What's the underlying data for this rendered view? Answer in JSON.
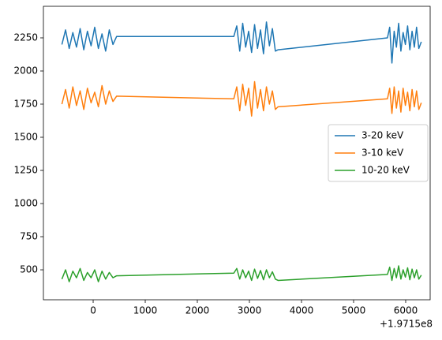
{
  "chart_data": {
    "type": "line",
    "x": [
      -600,
      -530,
      -460,
      -390,
      -320,
      -250,
      -180,
      -110,
      -40,
      30,
      100,
      170,
      240,
      310,
      380,
      450,
      2700,
      2757,
      2814,
      2871,
      2928,
      2985,
      3042,
      3099,
      3156,
      3213,
      3270,
      3327,
      3384,
      3441,
      3498,
      3550,
      5650,
      5693,
      5736,
      5779,
      5822,
      5865,
      5908,
      5951,
      5994,
      6037,
      6080,
      6123,
      6166,
      6209,
      6252,
      6300
    ],
    "x_offset_label": "+1.9715e8",
    "series": [
      {
        "name": "3-20 keV",
        "color": "#1f77b4",
        "values": [
          2200,
          2310,
          2170,
          2290,
          2180,
          2320,
          2160,
          2300,
          2190,
          2330,
          2170,
          2280,
          2150,
          2310,
          2200,
          2260,
          2260,
          2340,
          2150,
          2360,
          2180,
          2300,
          2140,
          2350,
          2170,
          2310,
          2130,
          2370,
          2190,
          2320,
          2150,
          2160,
          2250,
          2330,
          2060,
          2300,
          2180,
          2360,
          2150,
          2290,
          2200,
          2340,
          2160,
          2300,
          2180,
          2330,
          2170,
          2220
        ]
      },
      {
        "name": "3-10 keV",
        "color": "#ff7f0e",
        "values": [
          1750,
          1860,
          1720,
          1880,
          1740,
          1850,
          1710,
          1870,
          1760,
          1840,
          1730,
          1890,
          1750,
          1850,
          1770,
          1810,
          1790,
          1880,
          1700,
          1900,
          1740,
          1870,
          1660,
          1920,
          1720,
          1860,
          1700,
          1880,
          1750,
          1850,
          1710,
          1730,
          1790,
          1870,
          1680,
          1880,
          1720,
          1850,
          1690,
          1870,
          1740,
          1840,
          1700,
          1860,
          1730,
          1850,
          1710,
          1760
        ]
      },
      {
        "name": "10-20 keV",
        "color": "#2ca02c",
        "values": [
          430,
          500,
          410,
          490,
          440,
          510,
          420,
          480,
          440,
          500,
          410,
          490,
          430,
          480,
          440,
          455,
          475,
          510,
          430,
          500,
          440,
          490,
          420,
          505,
          435,
          495,
          425,
          500,
          440,
          485,
          430,
          420,
          465,
          520,
          420,
          510,
          440,
          530,
          430,
          500,
          445,
          515,
          425,
          505,
          440,
          500,
          430,
          460
        ]
      }
    ],
    "xlim": [
      -955,
      6470
    ],
    "ylim": [
      274,
      2488
    ],
    "xticks": [
      0,
      1000,
      2000,
      3000,
      4000,
      5000,
      6000
    ],
    "yticks": [
      500,
      750,
      1000,
      1250,
      1500,
      1750,
      2000,
      2250
    ],
    "legend": "center right"
  }
}
